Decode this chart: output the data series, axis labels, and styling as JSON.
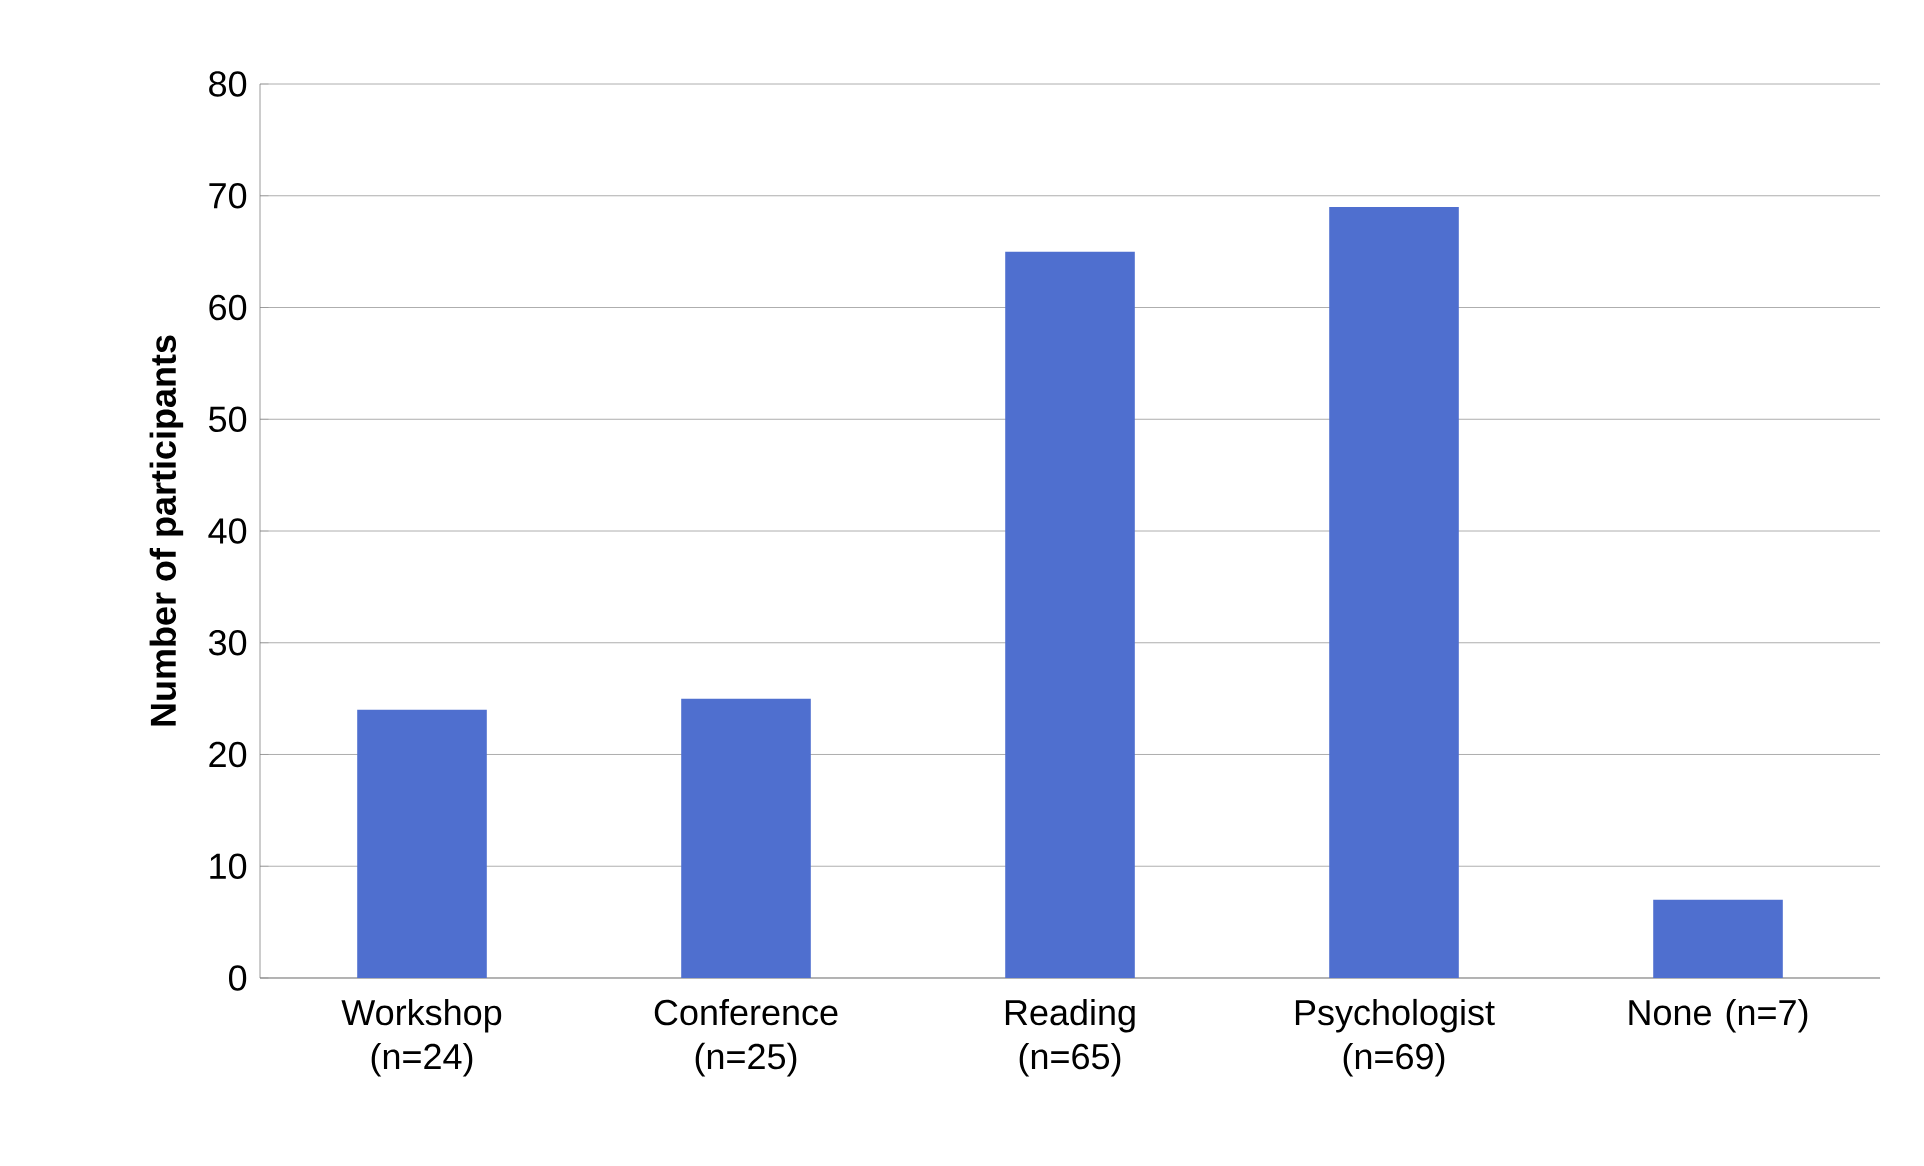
{
  "chart_data": {
    "type": "bar",
    "ylabel": "Number of participants",
    "categories": [
      "Workshop (n=24)",
      "Conference (n=25)",
      "Reading (n=65)",
      "Psychologist (n=69)",
      "None (n=7)"
    ],
    "values": [
      24,
      25,
      65,
      69,
      7
    ],
    "color": "#4f6fcf",
    "ylim": [
      0,
      80
    ],
    "yticks": [
      0,
      10,
      20,
      30,
      40,
      50,
      60,
      70,
      80
    ],
    "grid": "y"
  }
}
